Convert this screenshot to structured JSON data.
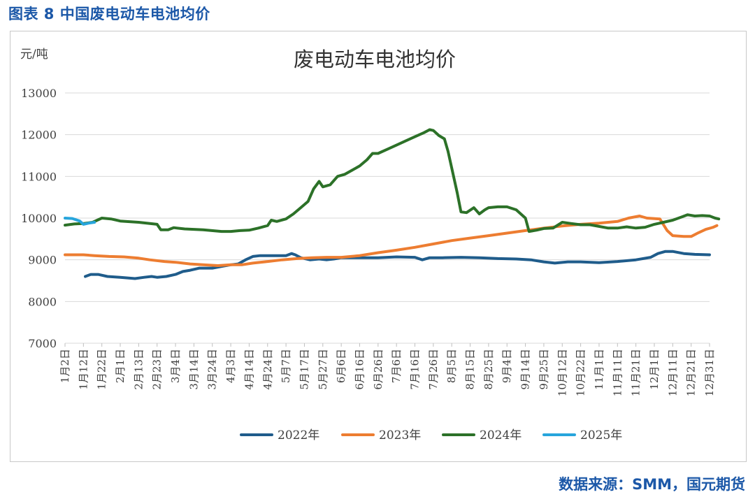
{
  "figure": {
    "caption": "图表 8 中国废电动车电池均价",
    "source": "数据来源：SMM，国元期货"
  },
  "chart_data": {
    "type": "line",
    "title": "废电动车电池均价",
    "ylabel": "元/吨",
    "ylim": [
      7000,
      13000
    ],
    "yticks": [
      7000,
      8000,
      9000,
      10000,
      11000,
      12000,
      13000
    ],
    "grid": true,
    "legend_position": "bottom",
    "x_tick_labels": [
      "1月2日",
      "1月12日",
      "1月22日",
      "2月1日",
      "2月13日",
      "2月23日",
      "3月4日",
      "3月14日",
      "3月24日",
      "4月3日",
      "4月14日",
      "4月24日",
      "5月7日",
      "5月17日",
      "5月27日",
      "6月6日",
      "6月16日",
      "6月26日",
      "7月6日",
      "7月16日",
      "7月26日",
      "8月5日",
      "8月15日",
      "8月25日",
      "9月4日",
      "9月14日",
      "9月25日",
      "10月12日",
      "10月22日",
      "11月1日",
      "11月11日",
      "11月21日",
      "12月1日",
      "12月11日",
      "12月21日",
      "12月31日"
    ],
    "series": [
      {
        "name": "2022年",
        "color": "#1f5c8b",
        "points": [
          [
            1.1,
            8600
          ],
          [
            1.4,
            8650
          ],
          [
            1.8,
            8650
          ],
          [
            2.3,
            8600
          ],
          [
            3.0,
            8580
          ],
          [
            3.8,
            8550
          ],
          [
            4.3,
            8580
          ],
          [
            4.7,
            8600
          ],
          [
            5.0,
            8580
          ],
          [
            5.5,
            8600
          ],
          [
            6.0,
            8650
          ],
          [
            6.4,
            8720
          ],
          [
            6.8,
            8750
          ],
          [
            7.3,
            8800
          ],
          [
            8.0,
            8800
          ],
          [
            8.6,
            8850
          ],
          [
            9.0,
            8880
          ],
          [
            9.4,
            8900
          ],
          [
            9.8,
            9000
          ],
          [
            10.2,
            9080
          ],
          [
            10.6,
            9100
          ],
          [
            11.2,
            9100
          ],
          [
            11.6,
            9100
          ],
          [
            12.0,
            9100
          ],
          [
            12.3,
            9150
          ],
          [
            12.5,
            9120
          ],
          [
            12.8,
            9050
          ],
          [
            13.3,
            9000
          ],
          [
            13.8,
            9020
          ],
          [
            14.2,
            9000
          ],
          [
            14.6,
            9020
          ],
          [
            15.0,
            9050
          ],
          [
            16.0,
            9050
          ],
          [
            17.0,
            9050
          ],
          [
            18.0,
            9070
          ],
          [
            19.0,
            9060
          ],
          [
            19.4,
            9000
          ],
          [
            19.8,
            9050
          ],
          [
            20.5,
            9050
          ],
          [
            21.5,
            9060
          ],
          [
            22.5,
            9050
          ],
          [
            23.5,
            9030
          ],
          [
            24.5,
            9020
          ],
          [
            25.3,
            9000
          ],
          [
            26.0,
            8950
          ],
          [
            26.6,
            8920
          ],
          [
            27.3,
            8950
          ],
          [
            28.0,
            8950
          ],
          [
            29.0,
            8930
          ],
          [
            30.0,
            8960
          ],
          [
            31.0,
            9000
          ],
          [
            31.8,
            9060
          ],
          [
            32.2,
            9150
          ],
          [
            32.6,
            9200
          ],
          [
            33.0,
            9200
          ],
          [
            33.6,
            9150
          ],
          [
            34.2,
            9130
          ],
          [
            35.0,
            9120
          ]
        ]
      },
      {
        "name": "2023年",
        "color": "#ed7d31",
        "points": [
          [
            0.0,
            9120
          ],
          [
            1.0,
            9120
          ],
          [
            1.6,
            9100
          ],
          [
            2.4,
            9080
          ],
          [
            3.2,
            9070
          ],
          [
            4.0,
            9040
          ],
          [
            4.6,
            9000
          ],
          [
            5.4,
            8960
          ],
          [
            6.0,
            8940
          ],
          [
            6.8,
            8900
          ],
          [
            7.5,
            8880
          ],
          [
            8.3,
            8860
          ],
          [
            9.0,
            8880
          ],
          [
            9.6,
            8880
          ],
          [
            10.2,
            8920
          ],
          [
            11.0,
            8960
          ],
          [
            11.8,
            9000
          ],
          [
            12.6,
            9030
          ],
          [
            13.4,
            9050
          ],
          [
            14.2,
            9060
          ],
          [
            15.0,
            9060
          ],
          [
            16.0,
            9100
          ],
          [
            17.0,
            9170
          ],
          [
            18.0,
            9230
          ],
          [
            19.0,
            9300
          ],
          [
            20.0,
            9380
          ],
          [
            21.0,
            9460
          ],
          [
            22.0,
            9520
          ],
          [
            23.0,
            9580
          ],
          [
            24.0,
            9640
          ],
          [
            25.0,
            9700
          ],
          [
            26.0,
            9760
          ],
          [
            27.0,
            9810
          ],
          [
            28.0,
            9850
          ],
          [
            29.0,
            9880
          ],
          [
            30.0,
            9920
          ],
          [
            30.6,
            10000
          ],
          [
            31.2,
            10050
          ],
          [
            31.6,
            10000
          ],
          [
            32.3,
            9980
          ],
          [
            32.7,
            9700
          ],
          [
            33.0,
            9580
          ],
          [
            33.6,
            9560
          ],
          [
            34.0,
            9560
          ],
          [
            34.4,
            9650
          ],
          [
            34.8,
            9730
          ],
          [
            35.2,
            9780
          ],
          [
            35.4,
            9820
          ]
        ]
      },
      {
        "name": "2024年",
        "color": "#2c7128",
        "points": [
          [
            0.0,
            9830
          ],
          [
            0.5,
            9860
          ],
          [
            1.0,
            9870
          ],
          [
            1.5,
            9900
          ],
          [
            2.0,
            10000
          ],
          [
            2.5,
            9980
          ],
          [
            3.0,
            9930
          ],
          [
            4.0,
            9900
          ],
          [
            5.0,
            9850
          ],
          [
            5.2,
            9720
          ],
          [
            5.6,
            9720
          ],
          [
            5.9,
            9770
          ],
          [
            6.5,
            9740
          ],
          [
            7.5,
            9720
          ],
          [
            8.5,
            9680
          ],
          [
            9.0,
            9680
          ],
          [
            9.5,
            9700
          ],
          [
            10.0,
            9710
          ],
          [
            10.5,
            9760
          ],
          [
            11.0,
            9820
          ],
          [
            11.2,
            9950
          ],
          [
            11.5,
            9920
          ],
          [
            12.0,
            9980
          ],
          [
            12.4,
            10100
          ],
          [
            12.8,
            10250
          ],
          [
            13.2,
            10400
          ],
          [
            13.5,
            10700
          ],
          [
            13.8,
            10880
          ],
          [
            14.0,
            10750
          ],
          [
            14.4,
            10800
          ],
          [
            14.8,
            11000
          ],
          [
            15.2,
            11050
          ],
          [
            15.6,
            11150
          ],
          [
            16.0,
            11250
          ],
          [
            16.4,
            11400
          ],
          [
            16.7,
            11550
          ],
          [
            17.0,
            11550
          ],
          [
            17.5,
            11650
          ],
          [
            18.0,
            11750
          ],
          [
            18.5,
            11850
          ],
          [
            19.0,
            11950
          ],
          [
            19.5,
            12050
          ],
          [
            19.8,
            12120
          ],
          [
            20.0,
            12100
          ],
          [
            20.3,
            11980
          ],
          [
            20.6,
            11900
          ],
          [
            20.8,
            11600
          ],
          [
            21.0,
            11200
          ],
          [
            21.3,
            10600
          ],
          [
            21.5,
            10150
          ],
          [
            21.8,
            10130
          ],
          [
            22.2,
            10250
          ],
          [
            22.5,
            10100
          ],
          [
            22.8,
            10200
          ],
          [
            23.0,
            10250
          ],
          [
            23.5,
            10270
          ],
          [
            24.0,
            10270
          ],
          [
            24.5,
            10200
          ],
          [
            25.0,
            10000
          ],
          [
            25.2,
            9680
          ],
          [
            25.6,
            9710
          ],
          [
            26.0,
            9750
          ],
          [
            26.5,
            9760
          ],
          [
            27.0,
            9900
          ],
          [
            27.5,
            9870
          ],
          [
            28.0,
            9840
          ],
          [
            28.5,
            9840
          ],
          [
            29.0,
            9800
          ],
          [
            29.5,
            9760
          ],
          [
            30.0,
            9760
          ],
          [
            30.5,
            9790
          ],
          [
            31.0,
            9760
          ],
          [
            31.5,
            9780
          ],
          [
            32.0,
            9850
          ],
          [
            32.5,
            9900
          ],
          [
            33.0,
            9950
          ],
          [
            33.5,
            10030
          ],
          [
            33.8,
            10080
          ],
          [
            34.2,
            10050
          ],
          [
            34.6,
            10060
          ],
          [
            35.0,
            10050
          ],
          [
            35.3,
            10000
          ],
          [
            35.5,
            9980
          ]
        ]
      },
      {
        "name": "2025年",
        "color": "#27a5dc",
        "points": [
          [
            0.0,
            10000
          ],
          [
            0.4,
            9990
          ],
          [
            0.8,
            9930
          ],
          [
            1.0,
            9850
          ],
          [
            1.3,
            9880
          ],
          [
            1.6,
            9900
          ]
        ]
      }
    ]
  }
}
